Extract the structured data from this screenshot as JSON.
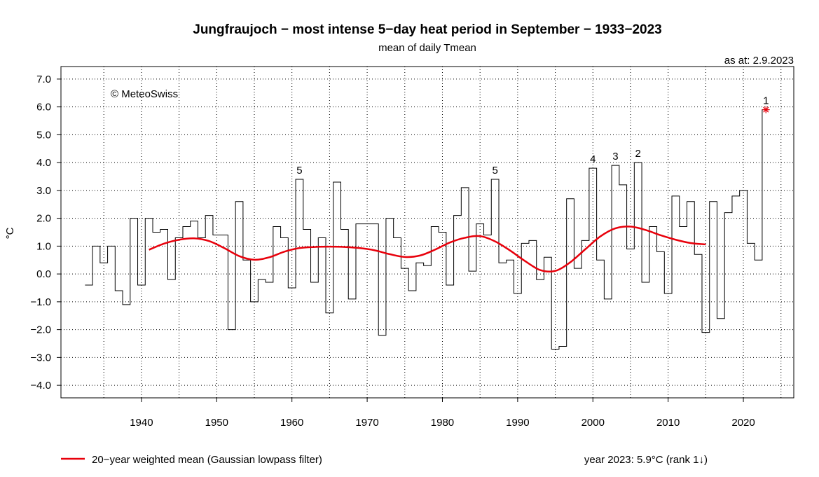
{
  "chart_data": {
    "type": "step-line",
    "title": "Jungfraujoch − most intense 5−day heat period in September − 1933−2023",
    "subtitle": "mean of daily Tmean",
    "as_at": "as at: 2.9.2023",
    "copyright": "© MeteoSwiss",
    "ylabel": "°C",
    "xlabel": "",
    "xlim": [
      1929.3,
      2026.7
    ],
    "ylim": [
      -4.45,
      7.45
    ],
    "x_ticks": [
      1940,
      1950,
      1960,
      1970,
      1980,
      1990,
      2000,
      2010,
      2020
    ],
    "y_ticks": [
      7,
      6,
      5,
      4,
      3,
      2,
      1,
      0,
      -1,
      -2,
      -3,
      -4
    ],
    "y_tick_labels": [
      "7.0",
      "6.0",
      "5.0",
      "4.0",
      "3.0",
      "2.0",
      "1.0",
      "0.0",
      "−1.0",
      "−2.0",
      "−3.0",
      "−4.0"
    ],
    "grid": true,
    "series": [
      {
        "name": "annual value",
        "years": [
          1933,
          1934,
          1935,
          1936,
          1937,
          1938,
          1939,
          1940,
          1941,
          1942,
          1943,
          1944,
          1945,
          1946,
          1947,
          1948,
          1949,
          1950,
          1951,
          1952,
          1953,
          1954,
          1955,
          1956,
          1957,
          1958,
          1959,
          1960,
          1961,
          1962,
          1963,
          1964,
          1965,
          1966,
          1967,
          1968,
          1969,
          1970,
          1971,
          1972,
          1973,
          1974,
          1975,
          1976,
          1977,
          1978,
          1979,
          1980,
          1981,
          1982,
          1983,
          1984,
          1985,
          1986,
          1987,
          1988,
          1989,
          1990,
          1991,
          1992,
          1993,
          1994,
          1995,
          1996,
          1997,
          1998,
          1999,
          2000,
          2001,
          2002,
          2003,
          2004,
          2005,
          2006,
          2007,
          2008,
          2009,
          2010,
          2011,
          2012,
          2013,
          2014,
          2015,
          2016,
          2017,
          2018,
          2019,
          2020,
          2021,
          2022,
          2023
        ],
        "values": [
          -0.4,
          1.0,
          0.4,
          1.0,
          -0.6,
          -1.1,
          2.0,
          -0.4,
          2.0,
          1.5,
          1.6,
          -0.2,
          1.3,
          1.7,
          1.9,
          1.3,
          2.1,
          1.4,
          1.4,
          -2.0,
          2.6,
          0.5,
          -1.0,
          -0.2,
          -0.3,
          1.7,
          1.3,
          -0.5,
          3.4,
          1.6,
          -0.3,
          1.3,
          -1.4,
          3.3,
          1.6,
          -0.9,
          1.8,
          1.8,
          1.8,
          -2.2,
          2.0,
          1.3,
          0.2,
          -0.6,
          0.4,
          0.3,
          1.7,
          1.5,
          -0.4,
          2.1,
          3.1,
          0.1,
          1.8,
          1.4,
          3.4,
          0.4,
          0.5,
          -0.7,
          1.1,
          1.2,
          -0.2,
          0.6,
          -2.7,
          -2.6,
          2.7,
          0.2,
          1.2,
          3.8,
          0.5,
          -0.9,
          3.9,
          3.2,
          0.9,
          4.0,
          -0.3,
          1.7,
          0.8,
          -0.7,
          2.8,
          1.7,
          2.6,
          0.7,
          -2.1,
          2.6,
          -1.6,
          2.2,
          2.8,
          3.0,
          1.1,
          0.5,
          5.9
        ]
      },
      {
        "name": "20−year weighted mean (Gaussian lowpass filter)",
        "color": "#e8000b",
        "years": [
          1941,
          1943,
          1945,
          1947,
          1949,
          1951,
          1953,
          1955,
          1957,
          1959,
          1961,
          1963,
          1965,
          1967,
          1969,
          1971,
          1973,
          1975,
          1977,
          1979,
          1981,
          1983,
          1985,
          1987,
          1989,
          1991,
          1993,
          1995,
          1997,
          1999,
          2001,
          2003,
          2005,
          2007,
          2009,
          2011,
          2013,
          2015
        ],
        "values": [
          0.87,
          1.09,
          1.23,
          1.28,
          1.18,
          0.93,
          0.64,
          0.51,
          0.6,
          0.8,
          0.93,
          0.97,
          0.98,
          0.97,
          0.93,
          0.85,
          0.71,
          0.61,
          0.66,
          0.87,
          1.13,
          1.3,
          1.36,
          1.17,
          0.84,
          0.46,
          0.14,
          0.11,
          0.42,
          0.89,
          1.35,
          1.64,
          1.7,
          1.58,
          1.39,
          1.23,
          1.11,
          1.06
        ]
      }
    ],
    "rank_labels": [
      {
        "rank": "1",
        "year": 2023,
        "value": 5.9
      },
      {
        "rank": "2",
        "year": 2006,
        "value": 4.0
      },
      {
        "rank": "3",
        "year": 2003,
        "value": 3.9
      },
      {
        "rank": "4",
        "year": 2000,
        "value": 3.8
      },
      {
        "rank": "5",
        "year": 1961,
        "value": 3.4
      },
      {
        "rank": "5",
        "year": 1987,
        "value": 3.4
      }
    ],
    "highlight": {
      "year": 2023,
      "value": 5.9,
      "marker": "*",
      "color": "#e8000b"
    },
    "legend_label": "20−year weighted mean (Gaussian lowpass filter)",
    "footer_note": "year 2023: 5.9°C (rank 1↓)"
  }
}
